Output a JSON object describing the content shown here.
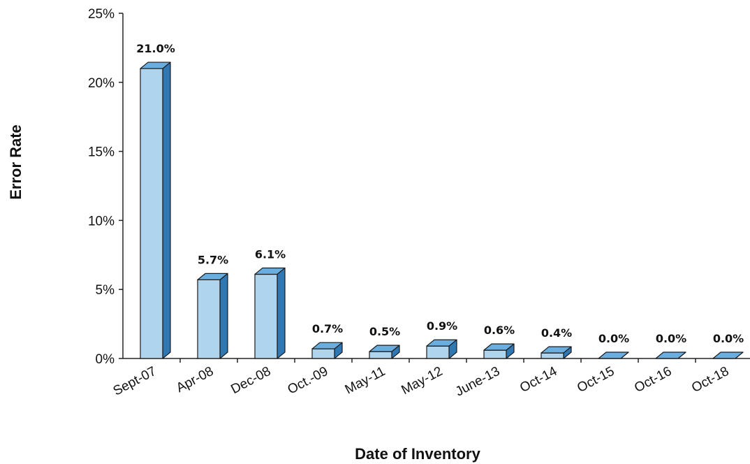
{
  "chart_data": {
    "type": "bar",
    "title": "",
    "xlabel": "Date of Inventory",
    "ylabel": "Error Rate",
    "categories": [
      "Sept-07",
      "Apr-08",
      "Dec-08",
      "Oct.-09",
      "May-11",
      "May-12",
      "June-13",
      "Oct-14",
      "Oct-15",
      "Oct-16",
      "Oct-18"
    ],
    "values": [
      21.0,
      5.7,
      6.1,
      0.7,
      0.5,
      0.9,
      0.6,
      0.4,
      0.0,
      0.0,
      0.0
    ],
    "data_labels": [
      "21.0%",
      "5.7%",
      "6.1%",
      "0.7%",
      "0.5%",
      "0.9%",
      "0.6%",
      "0.4%",
      "0.0%",
      "0.0%",
      "0.0%"
    ],
    "ylim": [
      0,
      25
    ],
    "yticks": [
      0,
      5,
      10,
      15,
      20,
      25
    ],
    "ytick_labels": [
      "0%",
      "5%",
      "10%",
      "15%",
      "20%",
      "25%"
    ],
    "grid": false,
    "legend": "none",
    "style": "3d-column",
    "colors": {
      "front": "#aed4ee",
      "side": "#2f78b4",
      "top": "#6aaedf",
      "outline": "#1a1a1a"
    }
  }
}
